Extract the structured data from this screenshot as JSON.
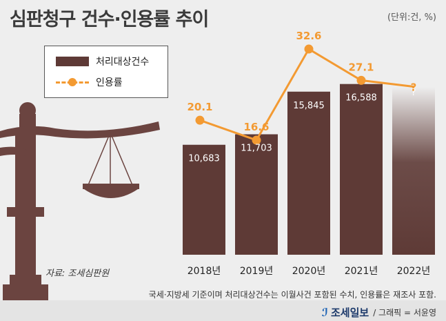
{
  "title": "심판청구 건수·인용률 추이",
  "unit": "(단위:건, %)",
  "legend": {
    "bar_label": "처리대상건수",
    "line_label": "인용률"
  },
  "source": "자료: 조세심판원",
  "footnote": "국세·지방세 기준이며 처리대상건수는 이월사건 포함된 수치, 인용률은 재조사 포함.",
  "credit": {
    "logo": "조세일보",
    "graphic": "/ 그래픽 = 서윤영"
  },
  "colors": {
    "bar": "#5e3a36",
    "line": "#f39a32",
    "background": "#eeeeee"
  },
  "chart_data": {
    "type": "bar",
    "title": "심판청구 건수·인용률 추이",
    "categories": [
      "2018년",
      "2019년",
      "2020년",
      "2021년",
      "2022년"
    ],
    "series": [
      {
        "name": "처리대상건수",
        "type": "bar",
        "values": [
          10683,
          11703,
          15845,
          16588,
          null
        ],
        "labels": [
          "10,683",
          "11,703",
          "15,845",
          "16,588",
          "?"
        ],
        "estimated_last": 16300
      },
      {
        "name": "인용률",
        "type": "line",
        "values": [
          20.1,
          16.6,
          32.6,
          27.1,
          null
        ],
        "labels": [
          "20.1",
          "16.6",
          "32.6",
          "27.1",
          "?"
        ],
        "estimated_last": 26.0
      }
    ],
    "xlabel": "",
    "ylabel": "",
    "bar_ylim": [
      0,
      22000
    ],
    "line_ylim": [
      0,
      40
    ],
    "legend_position": "top-left"
  }
}
